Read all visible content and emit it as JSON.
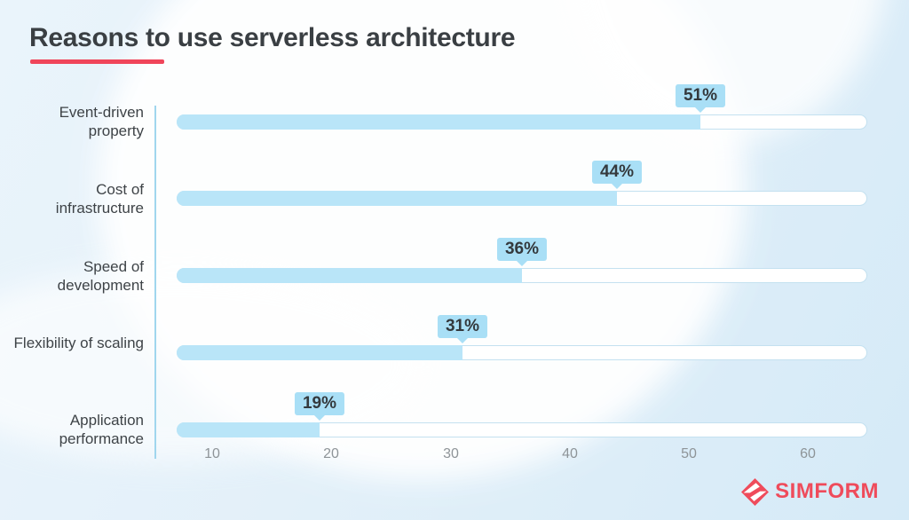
{
  "header": {
    "title": "Reasons to use serverless architecture"
  },
  "chart_data": {
    "type": "bar",
    "orientation": "horizontal",
    "title": "Reasons to use serverless architecture",
    "categories": [
      "Event-driven property",
      "Cost of infrastructure",
      "Speed of development",
      "Flexibility of scaling",
      "Application performance"
    ],
    "values": [
      51,
      44,
      36,
      31,
      19
    ],
    "value_labels": [
      "51%",
      "44%",
      "36%",
      "31%",
      "19%"
    ],
    "x_ticks": [
      10,
      20,
      30,
      40,
      50,
      60
    ],
    "xlim": [
      7,
      65
    ],
    "xlabel": "",
    "ylabel": "",
    "grid": false,
    "legend": false
  },
  "footer": {
    "brand": "SIMFORM",
    "brand_icon": "simform-diamond-icon"
  },
  "colors": {
    "accent_red": "#f0455a",
    "brand_red": "#ef4b5b",
    "bar_fill": "#b9e5f8",
    "badge_bg": "#a9dff6",
    "badge_text": "#34393d",
    "track_border": "#c4e1f0",
    "axis_line": "#a0d6ee",
    "title_text": "#3a3f43",
    "label_text": "#3e4347",
    "tick_text": "#8e9498"
  }
}
